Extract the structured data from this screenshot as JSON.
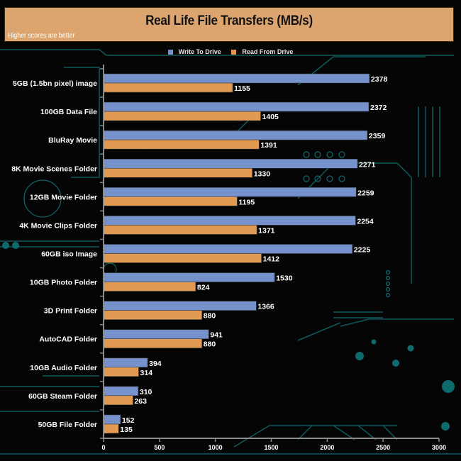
{
  "header": {
    "title": "Real Life File Transfers (MB/s)",
    "subtitle": "Higher scores are better"
  },
  "legend": {
    "items": [
      {
        "label": "Write To  Drive",
        "color": "#7592cc"
      },
      {
        "label": "Read From  Drive",
        "color": "#e19a52"
      }
    ]
  },
  "chart_data": {
    "type": "bar",
    "orientation": "horizontal",
    "title": "Real Life File Transfers (MB/s)",
    "subtitle": "Higher scores are better",
    "xlabel": "",
    "ylabel": "",
    "xlim": [
      0,
      3000
    ],
    "xticks": [
      0,
      500,
      1000,
      1500,
      2000,
      2500,
      3000
    ],
    "grid": false,
    "legend_position": "top-center",
    "categories": [
      "5GB (1.5bn pixel) image",
      "100GB Data File",
      "BluRay Movie",
      "8K Movie Scenes Folder",
      "12GB Movie Folder",
      "4K Movie Clips Folder",
      "60GB iso Image",
      "10GB Photo Folder",
      "3D Print Folder",
      "AutoCAD Folder",
      "10GB Audio Folder",
      "60GB Steam Folder",
      "50GB File Folder"
    ],
    "series": [
      {
        "name": "Write To  Drive",
        "color": "#7592cc",
        "values": [
          2378,
          2372,
          2359,
          2271,
          2259,
          2254,
          2225,
          1530,
          1366,
          941,
          394,
          310,
          152
        ]
      },
      {
        "name": "Read From  Drive",
        "color": "#e19a52",
        "values": [
          1155,
          1405,
          1391,
          1330,
          1195,
          1371,
          1412,
          824,
          880,
          880,
          314,
          263,
          135
        ]
      }
    ]
  }
}
